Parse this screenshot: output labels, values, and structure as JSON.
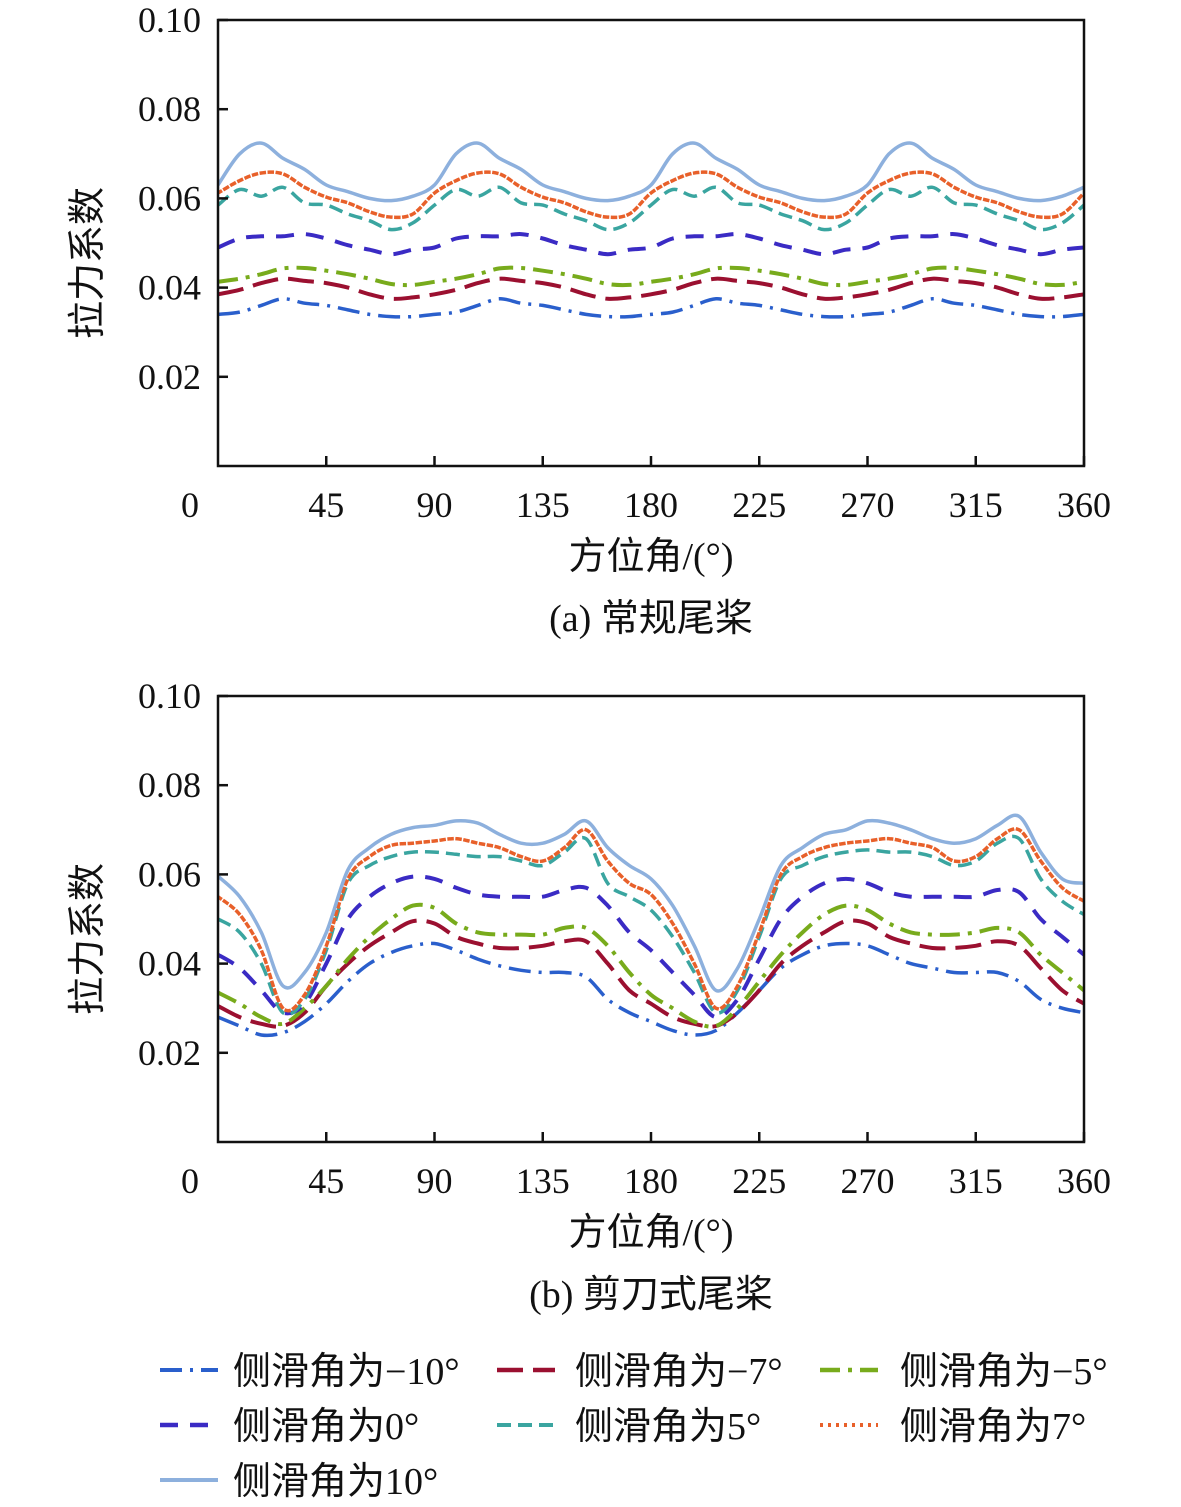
{
  "legend": [
    {
      "name": "侧滑角为−10°",
      "color": "#2a5fcc",
      "dash": "22 8 3 8",
      "width": 3.5
    },
    {
      "name": "侧滑角为−7°",
      "color": "#9b1030",
      "dash": "26 10",
      "width": 4
    },
    {
      "name": "侧滑角为−5°",
      "color": "#78ab1c",
      "dash": "20 8 4 8",
      "width": 4
    },
    {
      "name": "侧滑角为0°",
      "color": "#3a2bc4",
      "dash": "18 12",
      "width": 4
    },
    {
      "name": "侧滑角为5°",
      "color": "#3aa5a0",
      "dash": "14 7",
      "width": 3.5
    },
    {
      "name": "侧滑角为7°",
      "color": "#e8602a",
      "dash": "3 5",
      "width": 3.5
    },
    {
      "name": "侧滑角为10°",
      "color": "#8db0dd",
      "dash": "",
      "width": 3.5
    }
  ],
  "chart_data": [
    {
      "type": "line",
      "title": "(a) 常规尾桨",
      "xlabel": "方位角/(°)",
      "ylabel": "拉力系数",
      "xlim": [
        0,
        360
      ],
      "ylim": [
        0,
        0.1
      ],
      "xticks": [
        "0",
        "45",
        "90",
        "135",
        "180",
        "225",
        "270",
        "315",
        "360"
      ],
      "yticks": [
        "0.02",
        "0.04",
        "0.06",
        "0.08",
        "0.10"
      ],
      "grid": false,
      "x": [
        0,
        9,
        18,
        27,
        36,
        45,
        54,
        63,
        72,
        81,
        90,
        99,
        108,
        117,
        126,
        135,
        144,
        153,
        162,
        171,
        180,
        189,
        198,
        207,
        216,
        225,
        234,
        243,
        252,
        261,
        270,
        279,
        288,
        297,
        306,
        315,
        324,
        333,
        342,
        351,
        360
      ],
      "series": [
        {
          "name": "侧滑角为−10°",
          "values": [
            0.034,
            0.0345,
            0.036,
            0.0375,
            0.0365,
            0.036,
            0.035,
            0.034,
            0.0335,
            0.0335,
            0.034,
            0.0345,
            0.036,
            0.0375,
            0.0365,
            0.036,
            0.035,
            0.034,
            0.0335,
            0.0335,
            0.034,
            0.0345,
            0.036,
            0.0375,
            0.0365,
            0.036,
            0.035,
            0.034,
            0.0335,
            0.0335,
            0.034,
            0.0345,
            0.036,
            0.0375,
            0.0365,
            0.036,
            0.035,
            0.034,
            0.0335,
            0.0335,
            0.034
          ]
        },
        {
          "name": "侧滑角为−7°",
          "values": [
            0.0385,
            0.0395,
            0.041,
            0.042,
            0.0415,
            0.041,
            0.04,
            0.0385,
            0.0375,
            0.0378,
            0.0385,
            0.0395,
            0.041,
            0.042,
            0.0415,
            0.041,
            0.04,
            0.0385,
            0.0375,
            0.0378,
            0.0385,
            0.0395,
            0.041,
            0.042,
            0.0415,
            0.041,
            0.04,
            0.0385,
            0.0375,
            0.0378,
            0.0385,
            0.0395,
            0.041,
            0.042,
            0.0415,
            0.041,
            0.04,
            0.0385,
            0.0375,
            0.0378,
            0.0385
          ]
        },
        {
          "name": "侧滑角为−5°",
          "values": [
            0.0413,
            0.042,
            0.043,
            0.0443,
            0.0444,
            0.0438,
            0.043,
            0.042,
            0.0408,
            0.0406,
            0.0413,
            0.042,
            0.043,
            0.0443,
            0.0444,
            0.0438,
            0.043,
            0.042,
            0.0408,
            0.0406,
            0.0413,
            0.042,
            0.043,
            0.0443,
            0.0444,
            0.0438,
            0.043,
            0.042,
            0.0408,
            0.0406,
            0.0413,
            0.042,
            0.043,
            0.0443,
            0.0444,
            0.0438,
            0.043,
            0.042,
            0.0408,
            0.0406,
            0.0413
          ]
        },
        {
          "name": "侧滑角为0°",
          "values": [
            0.049,
            0.051,
            0.0515,
            0.0515,
            0.052,
            0.051,
            0.0495,
            0.0485,
            0.0475,
            0.0485,
            0.049,
            0.051,
            0.0515,
            0.0515,
            0.052,
            0.051,
            0.0495,
            0.0485,
            0.0475,
            0.0485,
            0.049,
            0.051,
            0.0515,
            0.0515,
            0.052,
            0.051,
            0.0495,
            0.0485,
            0.0475,
            0.0485,
            0.049,
            0.051,
            0.0515,
            0.0515,
            0.052,
            0.051,
            0.0495,
            0.0485,
            0.0475,
            0.0485,
            0.049
          ]
        },
        {
          "name": "侧滑角为5°",
          "values": [
            0.0585,
            0.062,
            0.0605,
            0.0625,
            0.059,
            0.0585,
            0.0565,
            0.055,
            0.053,
            0.0545,
            0.0585,
            0.062,
            0.0605,
            0.0625,
            0.059,
            0.0585,
            0.0565,
            0.055,
            0.053,
            0.0545,
            0.0585,
            0.062,
            0.0605,
            0.0625,
            0.059,
            0.0585,
            0.0565,
            0.055,
            0.053,
            0.0545,
            0.0585,
            0.062,
            0.0605,
            0.0625,
            0.059,
            0.0585,
            0.0565,
            0.055,
            0.053,
            0.0545,
            0.0585
          ]
        },
        {
          "name": "侧滑角为7°",
          "values": [
            0.0612,
            0.064,
            0.0657,
            0.0655,
            0.0625,
            0.0603,
            0.059,
            0.057,
            0.0558,
            0.0565,
            0.0612,
            0.064,
            0.0657,
            0.0655,
            0.0625,
            0.0603,
            0.059,
            0.057,
            0.0558,
            0.0565,
            0.0612,
            0.064,
            0.0657,
            0.0655,
            0.0625,
            0.0603,
            0.059,
            0.057,
            0.0558,
            0.0565,
            0.0612,
            0.064,
            0.0657,
            0.0655,
            0.0625,
            0.0603,
            0.059,
            0.057,
            0.0558,
            0.0565,
            0.0612
          ]
        },
        {
          "name": "侧滑角为10°",
          "values": [
            0.063,
            0.07,
            0.0724,
            0.069,
            0.0665,
            0.063,
            0.0615,
            0.06,
            0.0595,
            0.0605,
            0.063,
            0.07,
            0.0724,
            0.069,
            0.0665,
            0.063,
            0.0615,
            0.06,
            0.0595,
            0.0605,
            0.063,
            0.07,
            0.0724,
            0.069,
            0.0665,
            0.063,
            0.0615,
            0.06,
            0.0595,
            0.0605,
            0.063,
            0.07,
            0.0724,
            0.069,
            0.0665,
            0.063,
            0.0615,
            0.06,
            0.0595,
            0.0605,
            0.0625
          ]
        }
      ]
    },
    {
      "type": "line",
      "title": "(b) 剪刀式尾桨",
      "xlabel": "方位角/(°)",
      "ylabel": "拉力系数",
      "xlim": [
        0,
        360
      ],
      "ylim": [
        0,
        0.1
      ],
      "xticks": [
        "0",
        "45",
        "90",
        "135",
        "180",
        "225",
        "270",
        "315",
        "360"
      ],
      "yticks": [
        "0.02",
        "0.04",
        "0.06",
        "0.08",
        "0.10"
      ],
      "grid": false,
      "x": [
        0,
        9,
        18,
        27,
        36,
        45,
        54,
        63,
        72,
        81,
        90,
        99,
        108,
        117,
        126,
        135,
        144,
        153,
        162,
        171,
        180,
        189,
        198,
        207,
        216,
        225,
        234,
        243,
        252,
        261,
        270,
        279,
        288,
        297,
        306,
        315,
        324,
        333,
        342,
        351,
        360
      ],
      "series": [
        {
          "name": "侧滑角为−10°",
          "values": [
            0.028,
            0.026,
            0.024,
            0.0245,
            0.027,
            0.031,
            0.036,
            0.04,
            0.0425,
            0.044,
            0.0445,
            0.043,
            0.041,
            0.0395,
            0.0385,
            0.038,
            0.038,
            0.037,
            0.032,
            0.029,
            0.027,
            0.025,
            0.024,
            0.025,
            0.029,
            0.034,
            0.039,
            0.042,
            0.044,
            0.0445,
            0.044,
            0.042,
            0.04,
            0.039,
            0.038,
            0.038,
            0.038,
            0.036,
            0.032,
            0.03,
            0.029
          ]
        },
        {
          "name": "侧滑角为−7°",
          "values": [
            0.0305,
            0.028,
            0.0265,
            0.026,
            0.029,
            0.035,
            0.04,
            0.044,
            0.047,
            0.0495,
            0.049,
            0.046,
            0.0445,
            0.0435,
            0.0435,
            0.044,
            0.045,
            0.045,
            0.04,
            0.034,
            0.031,
            0.028,
            0.0265,
            0.026,
            0.029,
            0.034,
            0.04,
            0.044,
            0.047,
            0.0495,
            0.049,
            0.046,
            0.0445,
            0.0435,
            0.0435,
            0.044,
            0.045,
            0.044,
            0.039,
            0.034,
            0.031
          ]
        },
        {
          "name": "侧滑角为−5°",
          "values": [
            0.0335,
            0.031,
            0.028,
            0.0265,
            0.03,
            0.035,
            0.041,
            0.046,
            0.05,
            0.053,
            0.0525,
            0.049,
            0.047,
            0.0465,
            0.0465,
            0.0465,
            0.048,
            0.048,
            0.044,
            0.038,
            0.033,
            0.03,
            0.027,
            0.026,
            0.03,
            0.036,
            0.042,
            0.047,
            0.051,
            0.053,
            0.052,
            0.049,
            0.047,
            0.0465,
            0.0465,
            0.047,
            0.048,
            0.047,
            0.042,
            0.038,
            0.034
          ]
        },
        {
          "name": "侧滑角为0°",
          "values": [
            0.042,
            0.039,
            0.034,
            0.029,
            0.031,
            0.04,
            0.05,
            0.055,
            0.058,
            0.0595,
            0.059,
            0.057,
            0.0555,
            0.055,
            0.055,
            0.055,
            0.0565,
            0.057,
            0.053,
            0.047,
            0.043,
            0.038,
            0.033,
            0.028,
            0.032,
            0.041,
            0.05,
            0.055,
            0.058,
            0.059,
            0.058,
            0.056,
            0.055,
            0.055,
            0.055,
            0.055,
            0.0565,
            0.056,
            0.05,
            0.046,
            0.042
          ]
        },
        {
          "name": "侧滑角为5°",
          "values": [
            0.05,
            0.047,
            0.04,
            0.029,
            0.032,
            0.043,
            0.058,
            0.062,
            0.064,
            0.065,
            0.065,
            0.0645,
            0.064,
            0.064,
            0.063,
            0.062,
            0.065,
            0.068,
            0.058,
            0.055,
            0.052,
            0.046,
            0.038,
            0.029,
            0.034,
            0.046,
            0.059,
            0.062,
            0.064,
            0.065,
            0.0655,
            0.065,
            0.065,
            0.064,
            0.062,
            0.063,
            0.067,
            0.068,
            0.059,
            0.054,
            0.051
          ]
        },
        {
          "name": "侧滑角为7°",
          "values": [
            0.055,
            0.051,
            0.043,
            0.03,
            0.033,
            0.044,
            0.059,
            0.064,
            0.0665,
            0.067,
            0.0675,
            0.068,
            0.067,
            0.066,
            0.064,
            0.063,
            0.066,
            0.07,
            0.063,
            0.058,
            0.0555,
            0.049,
            0.04,
            0.03,
            0.035,
            0.047,
            0.06,
            0.064,
            0.066,
            0.067,
            0.0675,
            0.068,
            0.067,
            0.066,
            0.063,
            0.064,
            0.068,
            0.07,
            0.063,
            0.057,
            0.054
          ]
        },
        {
          "name": "侧滑角为10°",
          "values": [
            0.0596,
            0.055,
            0.047,
            0.035,
            0.038,
            0.047,
            0.061,
            0.066,
            0.069,
            0.0705,
            0.071,
            0.072,
            0.0715,
            0.069,
            0.067,
            0.067,
            0.069,
            0.072,
            0.066,
            0.062,
            0.059,
            0.053,
            0.044,
            0.034,
            0.039,
            0.05,
            0.062,
            0.066,
            0.069,
            0.07,
            0.072,
            0.0715,
            0.07,
            0.068,
            0.067,
            0.068,
            0.071,
            0.073,
            0.065,
            0.059,
            0.058
          ]
        }
      ]
    }
  ]
}
